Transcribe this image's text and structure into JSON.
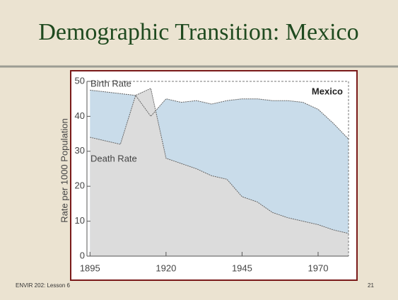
{
  "slide": {
    "title": "Demographic Transition: Mexico",
    "footer": "ENVIR 202: Lesson 6",
    "page_number": "21"
  },
  "chart_data": {
    "type": "area",
    "title": "Mexico",
    "ylabel": "Rate per 1000 Population",
    "x": [
      1895,
      1900,
      1905,
      1910,
      1915,
      1920,
      1925,
      1930,
      1935,
      1940,
      1945,
      1950,
      1955,
      1960,
      1965,
      1970,
      1975,
      1980
    ],
    "series": [
      {
        "name": "Birth Rate",
        "color": "#c9dcea",
        "values": [
          47.5,
          47,
          46.5,
          46,
          40,
          45,
          44,
          44.5,
          43.5,
          44.5,
          45,
          45,
          44.5,
          44.5,
          44,
          42,
          38,
          33.5
        ]
      },
      {
        "name": "Death Rate",
        "color": "#dcdcdc",
        "values": [
          34,
          33,
          32,
          46,
          48,
          28,
          26.5,
          25,
          23,
          22,
          17,
          15.5,
          12.5,
          11,
          10,
          9,
          7.5,
          6.5
        ]
      }
    ],
    "xlim": [
      1894,
      1980
    ],
    "xticks": [
      1895,
      1920,
      1945,
      1970
    ],
    "ylim": [
      0,
      50
    ],
    "yticks": [
      0,
      10,
      20,
      30,
      40,
      50
    ]
  }
}
